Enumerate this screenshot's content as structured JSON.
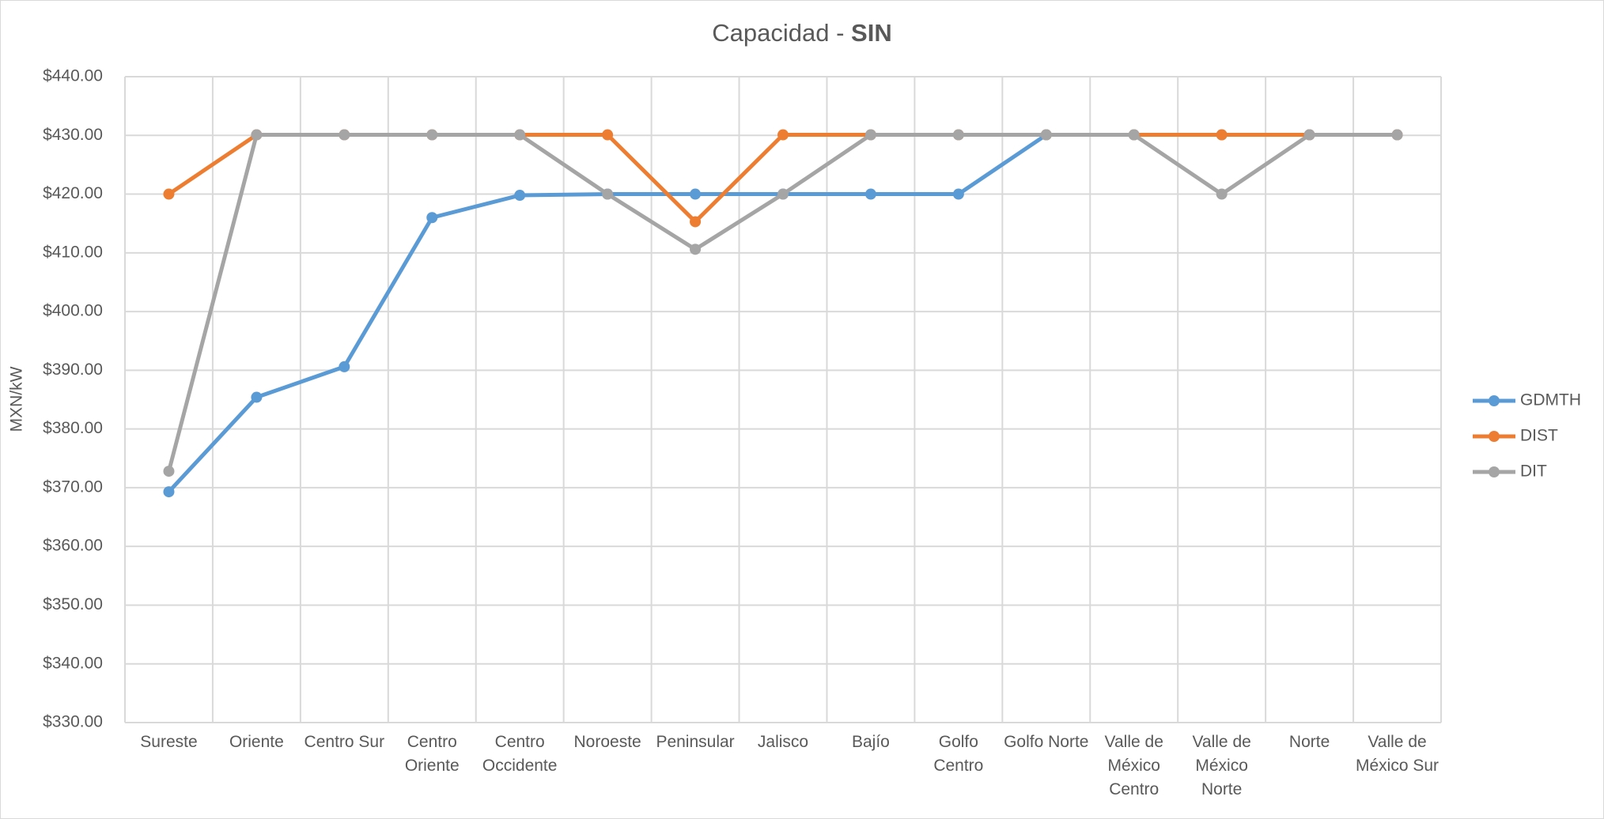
{
  "chart_data": {
    "type": "line",
    "title": {
      "text": "Capacidad -",
      "emphasis": "SIN"
    },
    "ylabel": "MXN/kW",
    "categories": [
      "Sureste",
      "Oriente",
      "Centro Sur",
      "Centro Oriente",
      "Centro Occidente",
      "Noroeste",
      "Peninsular",
      "Jalisco",
      "Bajío",
      "Golfo Centro",
      "Golfo Norte",
      "Valle de México Centro",
      "Valle de México Norte",
      "Norte",
      "Valle de México Sur"
    ],
    "series": [
      {
        "name": "GDMTH",
        "color": "#5b9bd5",
        "values": [
          369.3,
          385.4,
          390.6,
          416.0,
          419.8,
          420.0,
          420.0,
          420.0,
          420.0,
          420.0,
          430.1,
          430.1,
          430.1,
          430.1,
          430.1
        ]
      },
      {
        "name": "DIST",
        "color": "#ed7d31",
        "values": [
          420.0,
          430.1,
          430.1,
          430.1,
          430.1,
          430.1,
          415.3,
          430.1,
          430.1,
          430.1,
          430.1,
          430.1,
          430.1,
          430.1,
          430.1
        ]
      },
      {
        "name": "DIT",
        "color": "#a5a5a5",
        "values": [
          372.8,
          430.1,
          430.1,
          430.1,
          430.1,
          420.0,
          410.6,
          420.0,
          430.1,
          430.1,
          430.1,
          430.1,
          420.0,
          430.1,
          430.1
        ]
      }
    ],
    "ylim": [
      330,
      440
    ],
    "yticks": [
      {
        "value": 330,
        "label": "$330.00"
      },
      {
        "value": 340,
        "label": "$340.00"
      },
      {
        "value": 350,
        "label": "$350.00"
      },
      {
        "value": 360,
        "label": "$360.00"
      },
      {
        "value": 370,
        "label": "$370.00"
      },
      {
        "value": 380,
        "label": "$380.00"
      },
      {
        "value": 390,
        "label": "$390.00"
      },
      {
        "value": 400,
        "label": "$400.00"
      },
      {
        "value": 410,
        "label": "$410.00"
      },
      {
        "value": 420,
        "label": "$420.00"
      },
      {
        "value": 430,
        "label": "$430.00"
      },
      {
        "value": 440,
        "label": "$440.00"
      }
    ],
    "grid": true,
    "legend": "right"
  }
}
